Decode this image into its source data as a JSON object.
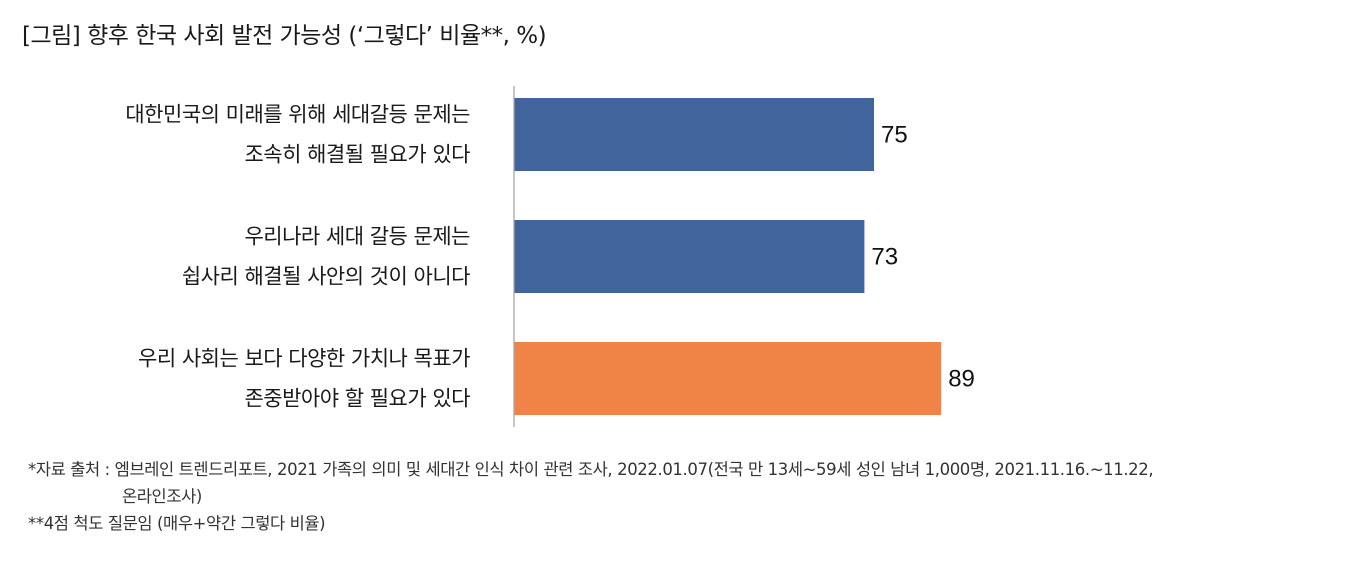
{
  "title": "[그림] 향후 한국 사회 발전 가능성 (‘그렇다’ 비율**, %)",
  "chart_data": {
    "type": "bar",
    "orientation": "horizontal",
    "categories": [
      [
        "대한민국의 미래를 위해 세대갈등 문제는",
        "조속히 해결될 필요가 있다"
      ],
      [
        "우리나라 세대 갈등 문제는",
        "쉽사리 해결될 사안의 것이 아니다"
      ],
      [
        "우리 사회는 보다 다양한 가치나 목표가",
        "존중받아야 할 필요가 있다"
      ]
    ],
    "values": [
      75,
      73,
      89
    ],
    "colors": [
      "#42649c",
      "#42649c",
      "#ef8446"
    ],
    "xlim": [
      0,
      100
    ],
    "grid": false,
    "legend": "none"
  },
  "notes": {
    "source_line1": "*자료 출처 : 엠브레인 트렌드리포트, 2021 가족의 의미 및 세대간 인식 차이 관련 조사, 2022.01.07(전국 만 13세~59세 성인 남녀 1,000명, 2021.11.16.~11.22,",
    "source_line2": "온라인조사)",
    "footnote": "**4점 척도 질문임 (매우+약간 그렇다 비율)"
  }
}
